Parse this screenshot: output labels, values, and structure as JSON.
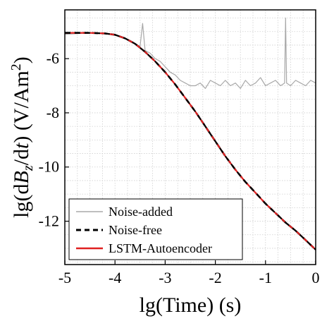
{
  "chart_data": {
    "type": "line",
    "title": "",
    "xlabel": "lg(Time) (s)",
    "ylabel_parts": {
      "prefix": "lg(d",
      "var": "B",
      "sub": "z",
      "mid": "/d",
      "var2": "t",
      "suffix": ") (V/Am",
      "sup": "2",
      "end": ")"
    },
    "xlim": [
      -5,
      0
    ],
    "ylim": [
      -13.6,
      -4.2
    ],
    "xticks": [
      -5,
      -4,
      -3,
      -2,
      -1,
      0
    ],
    "yticks": [
      -6,
      -8,
      -10,
      -12
    ],
    "grid": true,
    "legend_position": "bottom-left",
    "series": [
      {
        "name": "Noise-added",
        "color": "#a8a8a8",
        "style": "solid",
        "x": [
          -5.0,
          -4.5,
          -4.0,
          -3.8,
          -3.6,
          -3.5,
          -3.45,
          -3.4,
          -3.3,
          -3.2,
          -3.1,
          -3.0,
          -2.9,
          -2.8,
          -2.7,
          -2.6,
          -2.5,
          -2.4,
          -2.3,
          -2.2,
          -2.1,
          -2.0,
          -1.9,
          -1.8,
          -1.7,
          -1.6,
          -1.5,
          -1.4,
          -1.3,
          -1.2,
          -1.1,
          -1.0,
          -0.9,
          -0.8,
          -0.7,
          -0.62,
          -0.6,
          -0.58,
          -0.5,
          -0.4,
          -0.3,
          -0.2,
          -0.1,
          0.0
        ],
        "y": [
          -5.1,
          -5.05,
          -5.1,
          -5.25,
          -5.45,
          -5.55,
          -4.7,
          -5.7,
          -5.8,
          -6.0,
          -6.1,
          -6.3,
          -6.5,
          -6.6,
          -6.8,
          -6.9,
          -7.0,
          -7.0,
          -6.9,
          -7.1,
          -6.8,
          -6.9,
          -7.0,
          -6.8,
          -7.0,
          -6.9,
          -7.1,
          -6.8,
          -7.0,
          -6.9,
          -6.7,
          -7.0,
          -6.9,
          -6.8,
          -7.0,
          -6.9,
          -4.5,
          -6.9,
          -7.0,
          -6.8,
          -6.9,
          -7.0,
          -6.8,
          -6.9
        ]
      },
      {
        "name": "Noise-free",
        "color": "#000000",
        "style": "dashed",
        "x": [
          -5.0,
          -4.5,
          -4.2,
          -4.0,
          -3.8,
          -3.6,
          -3.4,
          -3.2,
          -3.0,
          -2.8,
          -2.6,
          -2.4,
          -2.2,
          -2.0,
          -1.8,
          -1.6,
          -1.4,
          -1.2,
          -1.0,
          -0.8,
          -0.6,
          -0.4,
          -0.2,
          0.0
        ],
        "y": [
          -5.05,
          -5.05,
          -5.07,
          -5.12,
          -5.25,
          -5.45,
          -5.75,
          -6.1,
          -6.5,
          -6.95,
          -7.45,
          -7.95,
          -8.5,
          -9.05,
          -9.6,
          -10.1,
          -10.55,
          -10.95,
          -11.35,
          -11.7,
          -12.05,
          -12.35,
          -12.7,
          -13.05
        ]
      },
      {
        "name": "LSTM-Autoencoder",
        "color": "#e02020",
        "style": "solid",
        "x": [
          -5.0,
          -4.5,
          -4.2,
          -4.0,
          -3.8,
          -3.6,
          -3.4,
          -3.2,
          -3.0,
          -2.8,
          -2.6,
          -2.4,
          -2.2,
          -2.0,
          -1.8,
          -1.6,
          -1.4,
          -1.2,
          -1.0,
          -0.8,
          -0.6,
          -0.4,
          -0.2,
          0.0
        ],
        "y": [
          -5.05,
          -5.05,
          -5.07,
          -5.12,
          -5.25,
          -5.45,
          -5.75,
          -6.1,
          -6.5,
          -6.95,
          -7.45,
          -7.95,
          -8.5,
          -9.05,
          -9.6,
          -10.1,
          -10.55,
          -10.95,
          -11.35,
          -11.7,
          -12.05,
          -12.35,
          -12.7,
          -13.05
        ]
      }
    ]
  }
}
